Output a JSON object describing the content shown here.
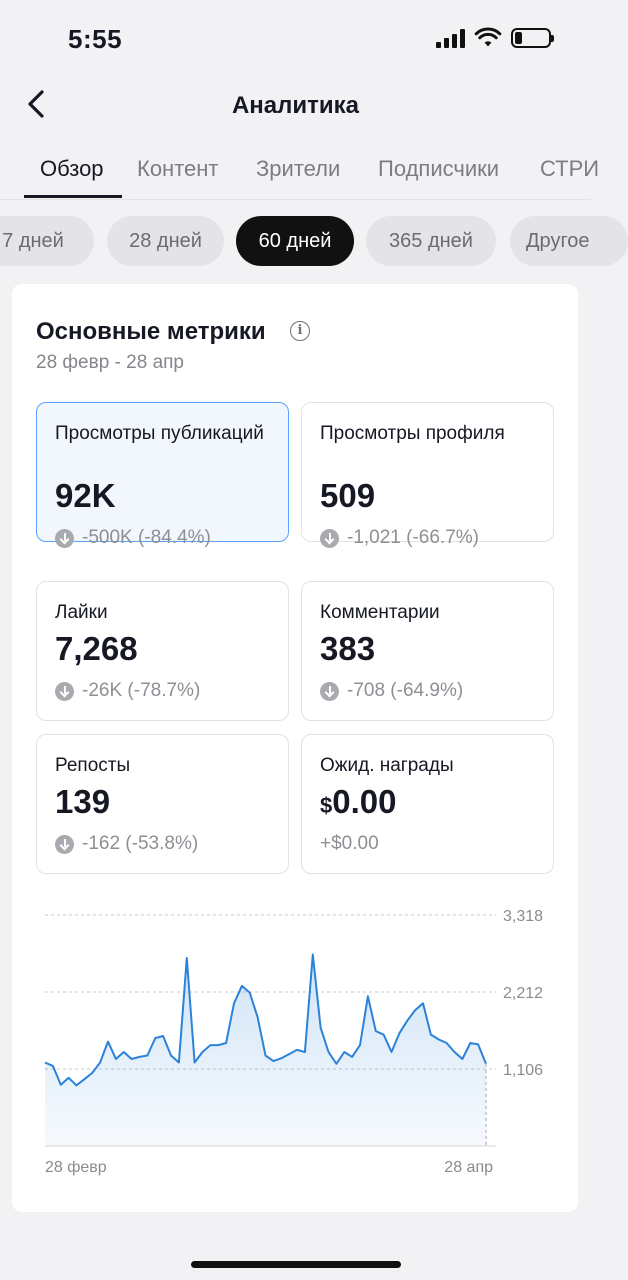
{
  "status_bar": {
    "time": "5:55"
  },
  "header": {
    "title": "Аналитика"
  },
  "tabs": [
    {
      "label": "Обзор",
      "active": true
    },
    {
      "label": "Контент",
      "active": false
    },
    {
      "label": "Зрители",
      "active": false
    },
    {
      "label": "Подписчики",
      "active": false
    },
    {
      "label": "СТРИ",
      "active": false
    }
  ],
  "periods": [
    {
      "label": "7 дней",
      "active": false
    },
    {
      "label": "28 дней",
      "active": false
    },
    {
      "label": "60 дней",
      "active": true
    },
    {
      "label": "365 дней",
      "active": false
    },
    {
      "label": "Другое",
      "active": false
    }
  ],
  "metrics_card": {
    "title": "Основные метрики",
    "date_range": "28 февр - 28 апр",
    "metrics": [
      {
        "label": "Просмотры публикаций",
        "value": "92K",
        "delta": "-500K (-84.4%)",
        "direction": "down",
        "selected": true
      },
      {
        "label": "Просмотры профиля",
        "value": "509",
        "delta": "-1,021 (-66.7%)",
        "direction": "down",
        "selected": false
      },
      {
        "label": "Лайки",
        "value": "7,268",
        "delta": "-26K (-78.7%)",
        "direction": "down",
        "selected": false
      },
      {
        "label": "Комментарии",
        "value": "383",
        "delta": "-708 (-64.9%)",
        "direction": "down",
        "selected": false
      },
      {
        "label": "Репосты",
        "value": "139",
        "delta": "-162 (-53.8%)",
        "direction": "down",
        "selected": false
      },
      {
        "label": "Ожид. награды",
        "currency": "$",
        "value": "0.00",
        "delta": "+$0.00",
        "direction": "none",
        "selected": false
      }
    ]
  },
  "chart_data": {
    "type": "area",
    "series": [
      {
        "values": [
          1200,
          1150,
          880,
          980,
          870,
          960,
          1050,
          1200,
          1500,
          1250,
          1350,
          1250,
          1280,
          1300,
          1550,
          1580,
          1300,
          1200,
          2700,
          1200,
          1350,
          1450,
          1450,
          1480,
          2050,
          2300,
          2200,
          1850,
          1300,
          1220,
          1260,
          1320,
          1380,
          1350,
          2750,
          1700,
          1350,
          1180,
          1350,
          1280,
          1450,
          2150,
          1650,
          1600,
          1350,
          1620,
          1800,
          1950,
          2050,
          1600,
          1530,
          1480,
          1350,
          1250,
          1480,
          1460,
          1180
        ],
        "color": "#2b83d9"
      }
    ],
    "x_labels": [
      "28 февр",
      "28 апр"
    ],
    "y_ticks": [
      3318,
      2212,
      1106
    ],
    "y_tick_labels": [
      "3,318",
      "2,212",
      "1,106"
    ],
    "ylim": [
      0,
      3318
    ],
    "grid": true
  },
  "colors": {
    "accent": "#2b83d9",
    "selected_border": "#5aa1ff",
    "selected_bg": "#f2f7fe"
  }
}
